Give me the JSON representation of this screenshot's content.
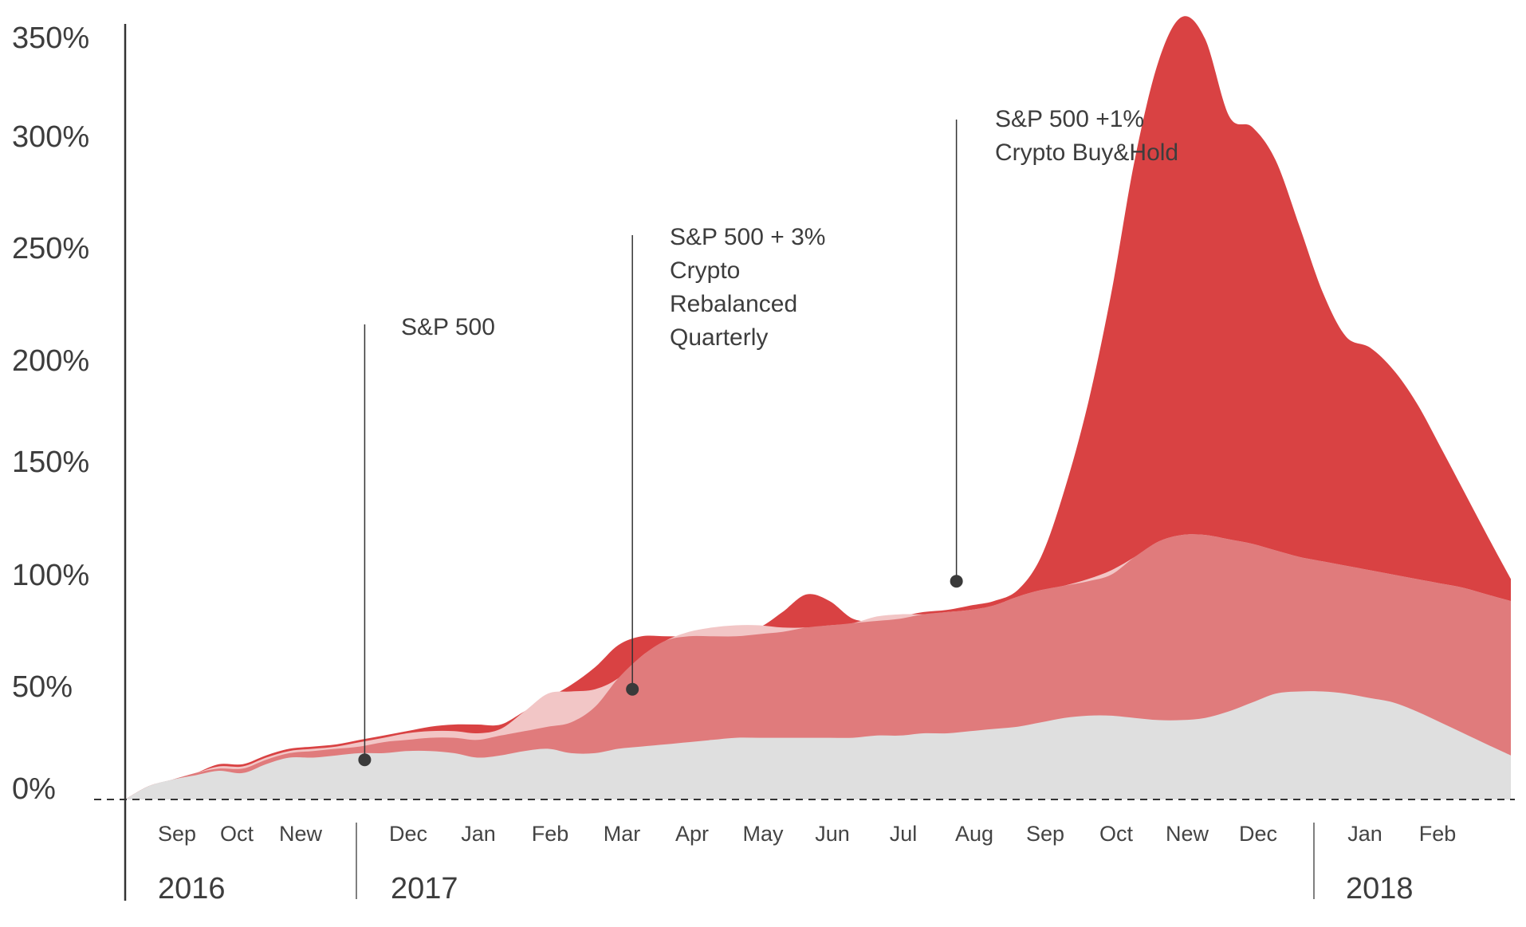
{
  "chart_data": {
    "type": "area",
    "title": "",
    "xlabel": "",
    "ylabel": "",
    "ylim": [
      0,
      350
    ],
    "yticks": [
      "0%",
      "50%",
      "100%",
      "150%",
      "200%",
      "250%",
      "300%",
      "350%"
    ],
    "xticks": [
      "Sep",
      "Oct",
      "New",
      "Dec",
      "Jan",
      "Feb",
      "Mar",
      "Apr",
      "May",
      "Jun",
      "Jul",
      "Aug",
      "Sep",
      "Oct",
      "New",
      "Dec",
      "Jan",
      "Feb"
    ],
    "years": [
      "2016",
      "2017",
      "2018"
    ],
    "grid": false,
    "x": [
      0,
      0.33,
      0.67,
      1.0,
      1.33,
      1.67,
      2.0,
      2.33,
      2.67,
      3.0,
      3.33,
      3.67,
      4.0,
      4.33,
      4.67,
      5.0,
      5.33,
      5.67,
      6.0,
      6.33,
      6.67,
      7.0,
      7.33,
      7.67,
      8.0,
      8.33,
      8.67,
      9.0,
      9.33,
      9.67,
      10.0,
      10.33,
      10.67,
      11.0,
      11.33,
      11.67,
      12.0,
      12.33,
      12.67,
      13.0,
      13.33,
      13.67,
      14.0,
      14.33,
      14.67,
      15.0,
      15.33,
      15.67,
      16.0,
      16.33,
      16.67,
      17.0,
      17.33,
      17.67,
      18.0,
      18.33,
      18.67,
      19.0,
      19.33,
      19.67
    ],
    "series": [
      {
        "color": "#d94243",
        "values": [
          0,
          6,
          9,
          12,
          16,
          16,
          20,
          23,
          24,
          25,
          27,
          29,
          31,
          33,
          34,
          34,
          34,
          40,
          46,
          52,
          60,
          70,
          74,
          74,
          74,
          75,
          76,
          78,
          85,
          93,
          90,
          82,
          81,
          83,
          85,
          86,
          88,
          90,
          95,
          110,
          140,
          180,
          230,
          290,
          335,
          355,
          345,
          310,
          305,
          290,
          260,
          230,
          210,
          205,
          195,
          180,
          160,
          140,
          120,
          100
        ]
      },
      {
        "color": "#f2c6c6",
        "values": [
          0,
          6,
          9,
          12,
          15,
          15,
          19,
          22,
          23,
          24,
          26,
          28,
          30,
          31,
          31,
          30,
          32,
          40,
          48,
          49,
          50,
          55,
          65,
          72,
          76,
          78,
          79,
          79,
          78,
          78,
          79,
          80,
          83,
          84,
          84,
          85,
          86,
          88,
          92,
          95,
          97,
          100,
          104,
          110,
          117,
          120,
          120,
          118,
          116,
          113,
          110,
          108,
          106,
          104,
          102,
          100,
          98,
          96,
          93,
          90
        ]
      },
      {
        "color": "#e07b7c",
        "values": [
          0,
          6,
          9,
          12,
          14,
          14,
          18,
          21,
          22,
          23,
          24,
          26,
          27,
          28,
          28,
          27,
          29,
          31,
          33,
          35,
          42,
          55,
          65,
          72,
          74,
          74,
          74,
          75,
          76,
          78,
          79,
          80,
          81,
          82,
          84,
          85,
          86,
          88,
          92,
          95,
          97,
          99,
          102,
          110,
          117,
          120,
          120,
          118,
          116,
          113,
          110,
          108,
          106,
          104,
          102,
          100,
          98,
          96,
          93,
          90
        ]
      },
      {
        "color": "#dfdfdf",
        "values": [
          0,
          6,
          9,
          11,
          13,
          12,
          16,
          19,
          19,
          20,
          21,
          21,
          22,
          22,
          21,
          19,
          20,
          22,
          23,
          21,
          21,
          23,
          24,
          25,
          26,
          27,
          28,
          28,
          28,
          28,
          28,
          28,
          29,
          29,
          30,
          30,
          31,
          32,
          33,
          35,
          37,
          38,
          38,
          37,
          36,
          36,
          37,
          40,
          44,
          48,
          49,
          49,
          48,
          46,
          44,
          40,
          35,
          30,
          25,
          20
        ]
      }
    ],
    "annotations": [
      {
        "x": 3.4,
        "y": 18,
        "lines": [
          "S&P 500"
        ]
      },
      {
        "x": 7.2,
        "y": 50,
        "lines": [
          "S&P 500 + 3%",
          "Crypto",
          "Rebalanced",
          "Quarterly"
        ]
      },
      {
        "x": 11.8,
        "y": 99,
        "lines": [
          "S&P 500 +1%",
          "Crypto Buy&Hold"
        ]
      }
    ]
  }
}
